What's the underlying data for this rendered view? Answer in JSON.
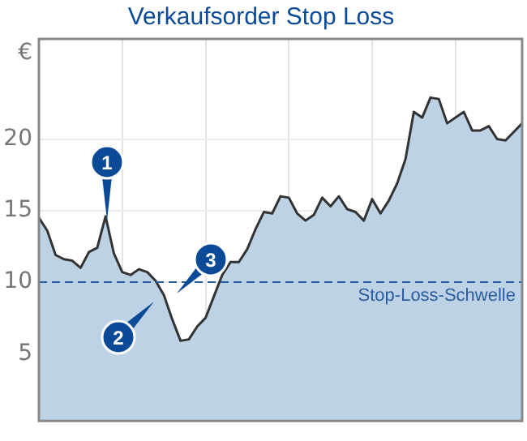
{
  "chart_data": {
    "type": "area",
    "title": "Verkaufsorder Stop Loss",
    "ylabel": "€",
    "categories": [
      null,
      null,
      null,
      null,
      null,
      null,
      null,
      null,
      null,
      null,
      null,
      null,
      null,
      null,
      null,
      null,
      null,
      null,
      null,
      null,
      null,
      null,
      null,
      null,
      null,
      null,
      null,
      null,
      null,
      null,
      null,
      null,
      null,
      null,
      null,
      null,
      null,
      null,
      null,
      null,
      null,
      null,
      null,
      null,
      null,
      null,
      null,
      null,
      null,
      null,
      null,
      null,
      null,
      null,
      null,
      null,
      null,
      null,
      null
    ],
    "series": [
      {
        "color": "#333333",
        "values": [
          14.5,
          13.6,
          11.9,
          11.6,
          11.5,
          11.0,
          12.1,
          12.4,
          14.6,
          12.0,
          10.7,
          10.5,
          10.9,
          10.7,
          10.1,
          9.1,
          7.4,
          5.9,
          6.0,
          6.9,
          7.5,
          9.0,
          10.5,
          11.4,
          11.4,
          12.3,
          13.7,
          14.9,
          14.8,
          16.0,
          15.9,
          14.8,
          14.3,
          14.7,
          15.9,
          15.3,
          16.0,
          15.1,
          14.9,
          14.3,
          15.8,
          14.8,
          15.7,
          16.9,
          18.6,
          21.9,
          21.5,
          22.9,
          22.8,
          21.1,
          21.5,
          21.9,
          20.6,
          20.6,
          20.9,
          20.0,
          19.9,
          20.5,
          21.1
        ]
      }
    ],
    "ylim": [
      0.3,
      27
    ],
    "yticks": [
      5,
      10,
      15,
      20
    ],
    "grid": true,
    "ref_lines": [
      {
        "axis": "y",
        "value": 10,
        "label": "Stop-Loss-Schwelle",
        "color": "#2a5d9f",
        "line_style": "dashed"
      }
    ],
    "annotations": [
      "1",
      "2",
      "3"
    ]
  }
}
